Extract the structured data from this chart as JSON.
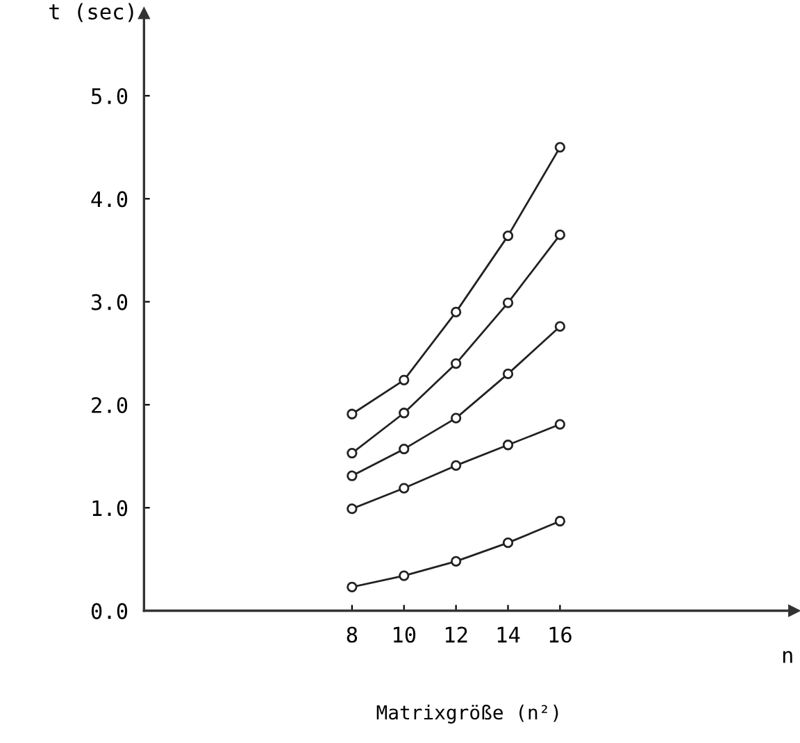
{
  "chart_data": {
    "type": "line",
    "xlabel": "Matrixgröße (n²)",
    "ylabel": "t (sec)",
    "annotations": [
      "n"
    ],
    "x": [
      8,
      10,
      12,
      14,
      16
    ],
    "series": [
      {
        "color": "#222222",
        "values": [
          1.91,
          2.24,
          2.9,
          3.64,
          4.5
        ]
      },
      {
        "color": "#222222",
        "values": [
          1.53,
          1.92,
          2.4,
          2.99,
          3.65
        ]
      },
      {
        "color": "#222222",
        "values": [
          1.31,
          1.57,
          1.87,
          2.3,
          2.76
        ]
      },
      {
        "color": "#222222",
        "values": [
          0.99,
          1.19,
          1.41,
          1.61,
          1.81
        ]
      },
      {
        "color": "#222222",
        "values": [
          0.23,
          0.34,
          0.48,
          0.66,
          0.87
        ]
      }
    ],
    "xlim": [
      0,
      25
    ],
    "ylim": [
      0,
      5.8
    ],
    "xticks": [
      8,
      10,
      12,
      14,
      16
    ],
    "yticks": [
      {
        "value": 0,
        "label": "0.0"
      },
      {
        "value": 1,
        "label": "1.0"
      },
      {
        "value": 2,
        "label": "2.0"
      },
      {
        "value": 3,
        "label": "3.0"
      },
      {
        "value": 4,
        "label": "4.0"
      },
      {
        "value": 5,
        "label": "5.0"
      }
    ],
    "marker": "circle",
    "line_style": "solid",
    "grid": false,
    "legend": false
  }
}
